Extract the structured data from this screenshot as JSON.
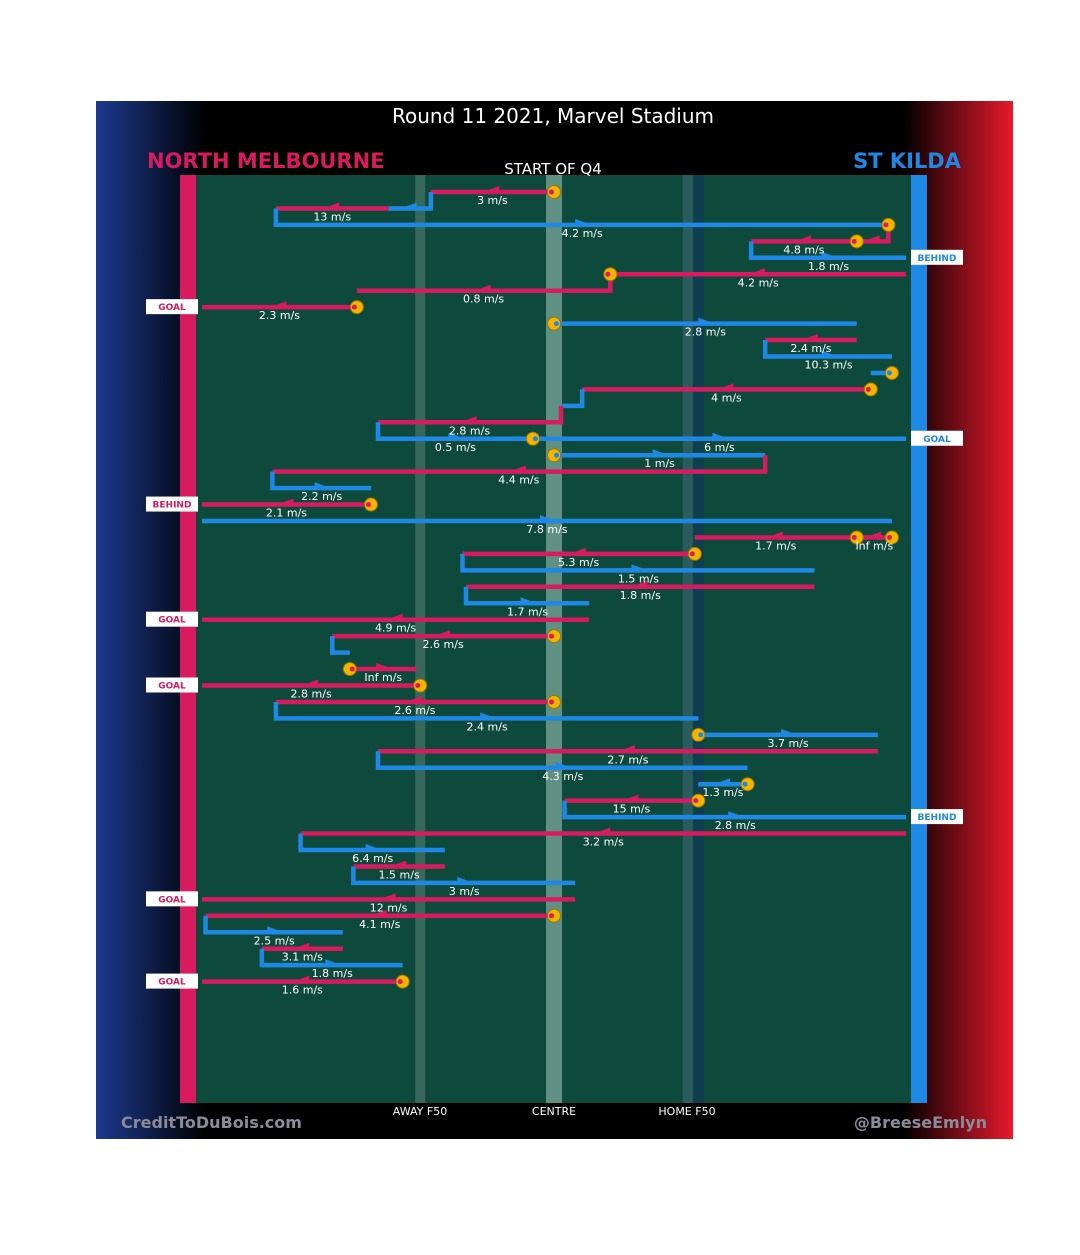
{
  "chart_data": {
    "type": "possession-chain",
    "title": "Round 11 2021, Marvel Stadium",
    "subtitle": "START OF Q4",
    "teams": {
      "left": {
        "name": "NORTH MELBOURNE",
        "color": "#d81b5f"
      },
      "right": {
        "name": "ST KILDA",
        "color": "#1e88e5"
      }
    },
    "x_labels": {
      "away_f50": "AWAY F50",
      "centre": "CENTRE",
      "home_f50": "HOME F50"
    },
    "footer": {
      "left": "CreditToDuBois.com",
      "right": "@BreeseEmlyn"
    },
    "colors": {
      "field": "#0e4a3c",
      "gold": "#f4b400",
      "team_left": "#d81b5f",
      "team_right": "#1e88e5"
    },
    "xlim": [
      0,
      100
    ],
    "x_marks": {
      "away_f50": 31,
      "centre": 50,
      "home_f50": 69
    },
    "segments": [
      {
        "team": "N",
        "from": [
          50,
          0
        ],
        "to": [
          32.5,
          0
        ],
        "speed": "3 m/s",
        "start_dot": true
      },
      {
        "team": "S",
        "from": [
          32.5,
          0
        ],
        "to": [
          26.5,
          1
        ],
        "speed": ""
      },
      {
        "team": "N",
        "from": [
          26.5,
          1
        ],
        "to": [
          10.5,
          1
        ],
        "speed": "13 m/s"
      },
      {
        "team": "S",
        "from": [
          10.5,
          1
        ],
        "to": [
          97.5,
          2
        ],
        "speed": "4.2 m/s"
      },
      {
        "team": "N",
        "from": [
          97.5,
          2
        ],
        "to": [
          93,
          3
        ],
        "speed": "",
        "start_dot": true
      },
      {
        "team": "N",
        "from": [
          93,
          3
        ],
        "to": [
          78,
          3
        ],
        "speed": "4.8 m/s",
        "start_dot": true
      },
      {
        "team": "S",
        "from": [
          78,
          3
        ],
        "to": [
          100,
          4
        ],
        "speed": "1.8 m/s"
      },
      {
        "team": "N",
        "from": [
          100,
          5
        ],
        "to": [
          58,
          5
        ],
        "speed": "4.2 m/s"
      },
      {
        "team": "N",
        "from": [
          58,
          5
        ],
        "to": [
          22,
          6
        ],
        "speed": "0.8 m/s",
        "start_dot": true
      },
      {
        "team": "N",
        "from": [
          22,
          7
        ],
        "to": [
          0,
          7
        ],
        "speed": "2.3 m/s",
        "start_dot": true
      },
      {
        "team": "S",
        "from": [
          50,
          8
        ],
        "to": [
          93,
          8
        ],
        "speed": "2.8 m/s",
        "start_dot": true
      },
      {
        "team": "N",
        "from": [
          93,
          9
        ],
        "to": [
          80,
          9
        ],
        "speed": "2.4 m/s"
      },
      {
        "team": "S",
        "from": [
          80,
          9
        ],
        "to": [
          98,
          10
        ],
        "speed": "10.3 m/s"
      },
      {
        "team": "S",
        "from": [
          98,
          11
        ],
        "to": [
          95,
          11
        ],
        "speed": "",
        "start_dot": true
      },
      {
        "team": "N",
        "from": [
          95,
          12
        ],
        "to": [
          54,
          12
        ],
        "speed": "4 m/s",
        "start_dot": true
      },
      {
        "team": "S",
        "from": [
          54,
          12
        ],
        "to": [
          51,
          13
        ],
        "speed": ""
      },
      {
        "team": "N",
        "from": [
          51,
          13
        ],
        "to": [
          25,
          14
        ],
        "speed": "2.8 m/s"
      },
      {
        "team": "S",
        "from": [
          25,
          14
        ],
        "to": [
          47,
          15
        ],
        "speed": "0.5 m/s"
      },
      {
        "team": "S",
        "from": [
          47,
          15
        ],
        "to": [
          100,
          15
        ],
        "speed": "6 m/s",
        "start_dot": true
      },
      {
        "team": "S",
        "from": [
          50,
          16
        ],
        "to": [
          80,
          16
        ],
        "speed": "1 m/s",
        "start_dot": true
      },
      {
        "team": "N",
        "from": [
          80,
          16
        ],
        "to": [
          10,
          17
        ],
        "speed": "4.4 m/s"
      },
      {
        "team": "S",
        "from": [
          10,
          17
        ],
        "to": [
          24,
          18
        ],
        "speed": "2.2 m/s"
      },
      {
        "team": "N",
        "from": [
          24,
          19
        ],
        "to": [
          0,
          19
        ],
        "speed": "2.1 m/s",
        "start_dot": true
      },
      {
        "team": "S",
        "from": [
          0,
          20
        ],
        "to": [
          98,
          20
        ],
        "speed": "7.8 m/s"
      },
      {
        "team": "N",
        "from": [
          98,
          21
        ],
        "to": [
          93,
          21
        ],
        "speed": "Inf m/s",
        "start_dot": true
      },
      {
        "team": "N",
        "from": [
          93,
          21
        ],
        "to": [
          70,
          21
        ],
        "speed": "1.7 m/s",
        "start_dot": true
      },
      {
        "team": "N",
        "from": [
          70,
          22
        ],
        "to": [
          37,
          22
        ],
        "speed": "5.3 m/s",
        "start_dot": true
      },
      {
        "team": "S",
        "from": [
          37,
          22
        ],
        "to": [
          87,
          23
        ],
        "speed": "1.5 m/s"
      },
      {
        "team": "N",
        "from": [
          87,
          24
        ],
        "to": [
          37.5,
          24
        ],
        "speed": "1.8 m/s"
      },
      {
        "team": "S",
        "from": [
          37.5,
          24
        ],
        "to": [
          55,
          25
        ],
        "speed": "1.7 m/s"
      },
      {
        "team": "N",
        "from": [
          55,
          26
        ],
        "to": [
          0,
          26
        ],
        "speed": "4.9 m/s"
      },
      {
        "team": "N",
        "from": [
          50,
          27
        ],
        "to": [
          18.5,
          27
        ],
        "speed": "2.6 m/s",
        "start_dot": true
      },
      {
        "team": "S",
        "from": [
          18.5,
          27
        ],
        "to": [
          21,
          28
        ],
        "speed": ""
      },
      {
        "team": "N",
        "from": [
          21,
          29
        ],
        "to": [
          30.5,
          29
        ],
        "speed": "Inf m/s",
        "start_dot": true
      },
      {
        "team": "N",
        "from": [
          31,
          30
        ],
        "to": [
          0,
          30
        ],
        "speed": "2.8 m/s",
        "start_dot": true
      },
      {
        "team": "N",
        "from": [
          50,
          31
        ],
        "to": [
          10.5,
          31
        ],
        "speed": "2.6 m/s",
        "start_dot": true
      },
      {
        "team": "S",
        "from": [
          10.5,
          31
        ],
        "to": [
          70.5,
          32
        ],
        "speed": "2.4 m/s"
      },
      {
        "team": "S",
        "from": [
          70.5,
          33
        ],
        "to": [
          96,
          33
        ],
        "speed": "3.7 m/s",
        "start_dot": true
      },
      {
        "team": "N",
        "from": [
          96,
          34
        ],
        "to": [
          25,
          34
        ],
        "speed": "2.7 m/s"
      },
      {
        "team": "S",
        "from": [
          25,
          34
        ],
        "to": [
          77.5,
          35
        ],
        "speed": "4.3 m/s"
      },
      {
        "team": "S",
        "from": [
          77.5,
          36
        ],
        "to": [
          70.5,
          36
        ],
        "speed": "1.3 m/s",
        "start_dot": true
      },
      {
        "team": "N",
        "from": [
          70.5,
          37
        ],
        "to": [
          51.5,
          37
        ],
        "speed": "15 m/s",
        "start_dot": true
      },
      {
        "team": "S",
        "from": [
          51.5,
          37
        ],
        "to": [
          100,
          38
        ],
        "speed": "2.8 m/s"
      },
      {
        "team": "N",
        "from": [
          100,
          39
        ],
        "to": [
          14,
          39
        ],
        "speed": "3.2 m/s"
      },
      {
        "team": "S",
        "from": [
          14,
          39
        ],
        "to": [
          34.5,
          40
        ],
        "speed": "6.4 m/s"
      },
      {
        "team": "N",
        "from": [
          34.5,
          41
        ],
        "to": [
          21.5,
          41
        ],
        "speed": "1.5 m/s"
      },
      {
        "team": "S",
        "from": [
          21.5,
          41
        ],
        "to": [
          53,
          42
        ],
        "speed": "3 m/s"
      },
      {
        "team": "N",
        "from": [
          53,
          43
        ],
        "to": [
          0,
          43
        ],
        "speed": "12 m/s"
      },
      {
        "team": "N",
        "from": [
          50,
          44
        ],
        "to": [
          0.5,
          44
        ],
        "speed": "4.1 m/s",
        "start_dot": true
      },
      {
        "team": "S",
        "from": [
          0.5,
          44
        ],
        "to": [
          20,
          45
        ],
        "speed": "2.5 m/s"
      },
      {
        "team": "N",
        "from": [
          20,
          46
        ],
        "to": [
          8.5,
          46
        ],
        "speed": "3.1 m/s"
      },
      {
        "team": "S",
        "from": [
          8.5,
          46
        ],
        "to": [
          28.5,
          47
        ],
        "speed": "1.8 m/s"
      },
      {
        "team": "N",
        "from": [
          28.5,
          48
        ],
        "to": [
          0,
          48
        ],
        "speed": "1.6 m/s",
        "start_dot": true
      }
    ],
    "events": [
      {
        "text": "BEHIND",
        "team": "S",
        "side": "right",
        "row": 4
      },
      {
        "text": "GOAL",
        "team": "N",
        "side": "left",
        "row": 7
      },
      {
        "text": "GOAL",
        "team": "S",
        "side": "right",
        "row": 15
      },
      {
        "text": "BEHIND",
        "team": "N",
        "side": "left",
        "row": 19
      },
      {
        "text": "GOAL",
        "team": "N",
        "side": "left",
        "row": 26
      },
      {
        "text": "GOAL",
        "team": "N",
        "side": "left",
        "row": 30
      },
      {
        "text": "BEHIND",
        "team": "S",
        "side": "right",
        "row": 38
      },
      {
        "text": "GOAL",
        "team": "N",
        "side": "left",
        "row": 43
      },
      {
        "text": "GOAL",
        "team": "N",
        "side": "left",
        "row": 48
      }
    ]
  }
}
